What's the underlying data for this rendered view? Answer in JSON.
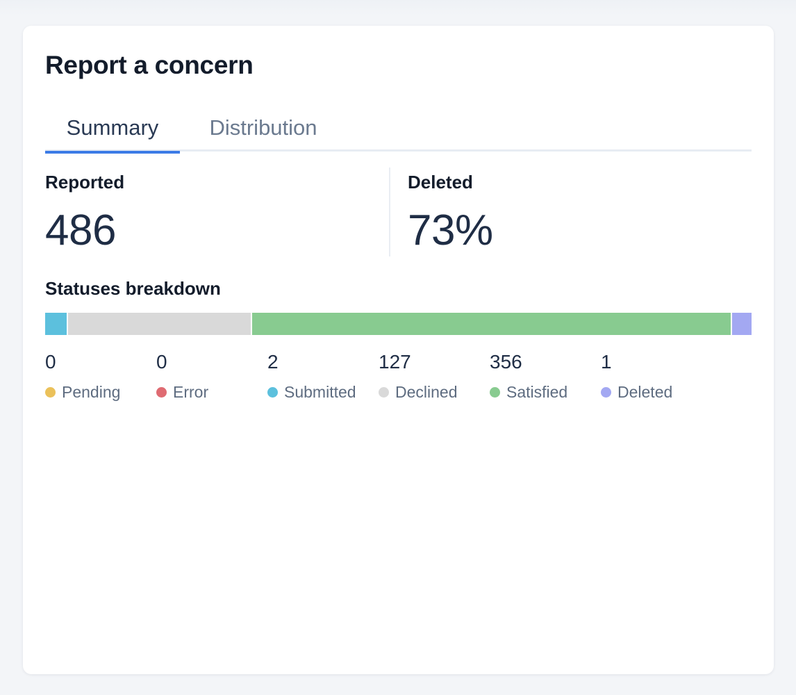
{
  "card": {
    "title": "Report a concern",
    "tabs": [
      {
        "label": "Summary",
        "active": true
      },
      {
        "label": "Distribution",
        "active": false
      }
    ],
    "stats": {
      "reported": {
        "label": "Reported",
        "value": "486"
      },
      "deleted": {
        "label": "Deleted",
        "value": "73%"
      }
    },
    "breakdown": {
      "title": "Statuses breakdown",
      "statuses": [
        {
          "label": "Pending",
          "count": "0",
          "value": 0,
          "color": "#ebc15a"
        },
        {
          "label": "Error",
          "count": "0",
          "value": 0,
          "color": "#df6b72"
        },
        {
          "label": "Submitted",
          "count": "2",
          "value": 2,
          "color": "#5cc0dd"
        },
        {
          "label": "Declined",
          "count": "127",
          "value": 127,
          "color": "#d9d9d9"
        },
        {
          "label": "Satisfied",
          "count": "356",
          "value": 356,
          "color": "#88cb90"
        },
        {
          "label": "Deleted",
          "count": "1",
          "value": 1,
          "color": "#a3a8f2"
        }
      ]
    }
  }
}
